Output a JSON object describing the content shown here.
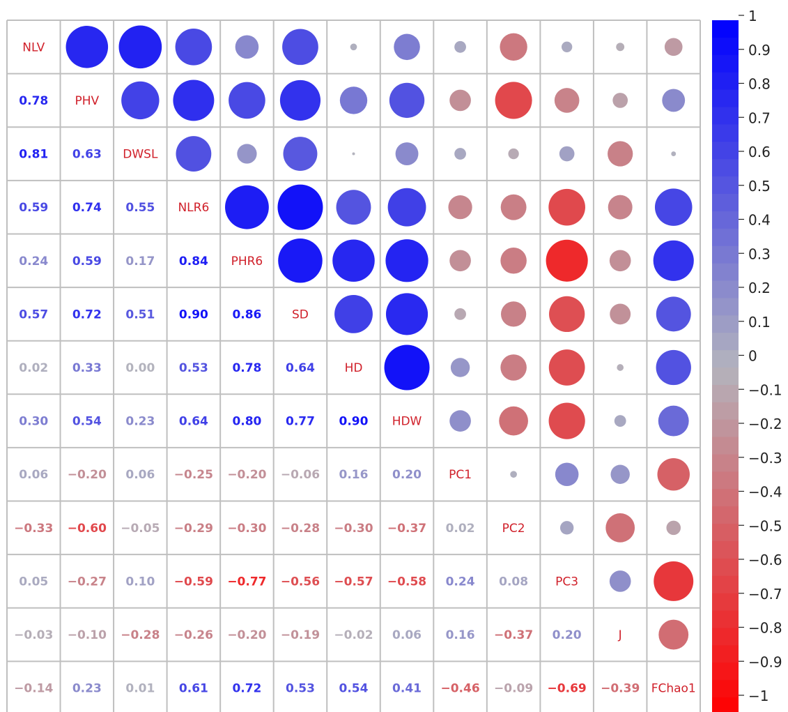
{
  "chart_data": {
    "type": "heatmap",
    "variables": [
      "NLV",
      "PHV",
      "DWSL",
      "NLR6",
      "PHR6",
      "SD",
      "HD",
      "HDW",
      "PC1",
      "PC2",
      "PC3",
      "J",
      "FChao1"
    ],
    "lower_text": [
      [
        "0.78"
      ],
      [
        "0.81",
        "0.63"
      ],
      [
        "0.59",
        "0.74",
        "0.55"
      ],
      [
        "0.24",
        "0.59",
        "0.17",
        "0.84"
      ],
      [
        "0.57",
        "0.72",
        "0.51",
        "0.90",
        "0.86"
      ],
      [
        "0.02",
        "0.33",
        "0.00",
        "0.53",
        "0.78",
        "0.64"
      ],
      [
        "0.30",
        "0.54",
        "0.23",
        "0.64",
        "0.80",
        "0.77",
        "0.90"
      ],
      [
        "0.06",
        "−0.20",
        "0.06",
        "−0.25",
        "−0.20",
        "−0.06",
        "0.16",
        "0.20"
      ],
      [
        "−0.33",
        "−0.60",
        "−0.05",
        "−0.29",
        "−0.30",
        "−0.28",
        "−0.30",
        "−0.37",
        "0.02"
      ],
      [
        "0.05",
        "−0.27",
        "0.10",
        "−0.59",
        "−0.77",
        "−0.56",
        "−0.57",
        "−0.58",
        "0.24",
        "0.08"
      ],
      [
        "−0.03",
        "−0.10",
        "−0.28",
        "−0.26",
        "−0.20",
        "−0.19",
        "−0.02",
        "0.06",
        "0.16",
        "−0.37",
        "0.20"
      ],
      [
        "−0.14",
        "0.23",
        "0.01",
        "0.61",
        "0.72",
        "0.53",
        "0.54",
        "0.41",
        "−0.46",
        "−0.09",
        "−0.69",
        "−0.39"
      ]
    ],
    "colorbar": {
      "min": -1,
      "max": 1,
      "tick_labels": [
        "1",
        "0.9",
        "0.8",
        "0.7",
        "0.6",
        "0.5",
        "0.4",
        "0.3",
        "0.2",
        "0.1",
        "0",
        "−0.1",
        "−0.2",
        "−0.3",
        "−0.4",
        "−0.5",
        "−0.6",
        "−0.7",
        "−0.8",
        "−0.9",
        "−1"
      ],
      "positive_color": "#0000ff",
      "negative_color": "#ff0000",
      "neutral_color": "#b3b3bd"
    },
    "label_color": "#d0202a",
    "grid_color": "#bfbfbf"
  }
}
